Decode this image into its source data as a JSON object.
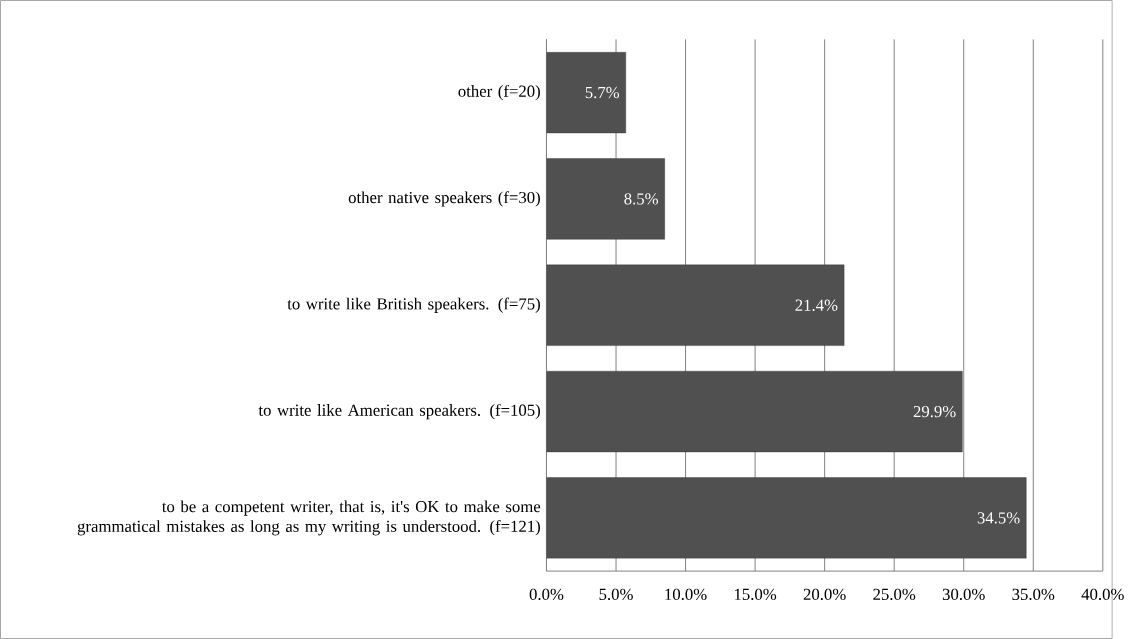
{
  "chart_data": {
    "type": "bar",
    "orientation": "horizontal",
    "categories": [
      "other (f=20)",
      "other native speakers (f=30)",
      "to write like British speakers. (f=75)",
      "to write like American speakers. (f=105)",
      "to be a competent writer, that is, it's OK to make some grammatical mistakes as long as my writing is understood. (f=121)"
    ],
    "values": [
      5.7,
      8.5,
      21.4,
      29.9,
      34.5
    ],
    "value_labels": [
      "5.7%",
      "8.5%",
      "21.4%",
      "29.9%",
      "34.5%"
    ],
    "color": "#505050",
    "xlim": [
      0,
      40
    ],
    "xticks": [
      {
        "value": 0,
        "label": "0.0%"
      },
      {
        "value": 5,
        "label": "5.0%"
      },
      {
        "value": 10,
        "label": "10.0%"
      },
      {
        "value": 15,
        "label": "15.0%"
      },
      {
        "value": 20,
        "label": "20.0%"
      },
      {
        "value": 25,
        "label": "25.0%"
      },
      {
        "value": 30,
        "label": "30.0%"
      },
      {
        "value": 35,
        "label": "35.0%"
      },
      {
        "value": 40,
        "label": "40.0%"
      }
    ],
    "grid": "x"
  }
}
